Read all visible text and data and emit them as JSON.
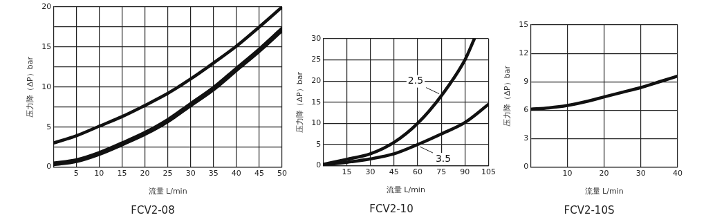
{
  "chart_data": [
    {
      "type": "line",
      "title": "FCV2-08",
      "xlabel": "流量 L/min",
      "ylabel": "压力降（ΔP）bar",
      "x": [
        0,
        5,
        10,
        15,
        20,
        25,
        30,
        35,
        40,
        45,
        50
      ],
      "series": [
        {
          "color": "#111111",
          "values": [
            3,
            3.9,
            5.1,
            6.3,
            7.7,
            9.2,
            11,
            13,
            15.1,
            17.5,
            20
          ]
        },
        {
          "color": "#111111",
          "values": [
            0.4,
            0.8,
            1.7,
            2.9,
            4.2,
            5.8,
            7.8,
            9.8,
            12.2,
            14.6,
            17.2
          ]
        }
      ],
      "xlim": [
        0,
        50
      ],
      "xticks": [
        5,
        10,
        15,
        20,
        25,
        30,
        35,
        40,
        45,
        50
      ],
      "ylim": [
        0,
        20
      ],
      "yticks": [
        0,
        {
          "value": 2.5,
          "label": null
        },
        5,
        {
          "value": 7.5,
          "label": null
        },
        10,
        {
          "value": 12.5,
          "label": null
        },
        15,
        {
          "value": 17.5,
          "label": null
        },
        20
      ],
      "grid": true,
      "legend": false,
      "marker": "none",
      "line_style": "solid"
    },
    {
      "type": "line",
      "title": "FCV2-10",
      "xlabel": "流量 L/min",
      "ylabel": "压力降（ΔP）bar",
      "series": [
        {
          "name": "2.5",
          "color": "#111111",
          "x": [
            0,
            15,
            30,
            45,
            60,
            75,
            90,
            96
          ],
          "values": [
            0.3,
            1.5,
            2.8,
            5.5,
            10,
            16.5,
            25,
            30
          ]
        },
        {
          "name": "3.5",
          "color": "#111111",
          "x": [
            0,
            15,
            30,
            45,
            60,
            75,
            90,
            105
          ],
          "values": [
            0.2,
            0.8,
            1.6,
            2.8,
            5,
            7.5,
            10.2,
            14.5
          ]
        }
      ],
      "xlim": [
        0,
        105
      ],
      "xticks": [
        15,
        30,
        45,
        60,
        75,
        90,
        105
      ],
      "ylim": [
        0,
        30
      ],
      "yticks": [
        0,
        5,
        10,
        15,
        20,
        25,
        30
      ],
      "grid": true,
      "legend": false,
      "marker": "none",
      "line_style": "solid"
    },
    {
      "type": "line",
      "title": "FCV2-10S",
      "xlabel": "流量 L/min",
      "ylabel": "压力降（ΔP）bar",
      "x": [
        0,
        5,
        10,
        15,
        20,
        25,
        30,
        35,
        40
      ],
      "series": [
        {
          "color": "#111111",
          "values": [
            6.1,
            6.25,
            6.5,
            6.9,
            7.4,
            7.9,
            8.4,
            9,
            9.6
          ]
        }
      ],
      "xlim": [
        0,
        40
      ],
      "xticks": [
        10,
        20,
        30,
        40
      ],
      "ylim": [
        0,
        15
      ],
      "yticks": [
        0,
        3,
        6,
        9,
        12,
        15
      ],
      "grid": true,
      "legend": false,
      "marker": "none",
      "line_style": "solid"
    }
  ]
}
